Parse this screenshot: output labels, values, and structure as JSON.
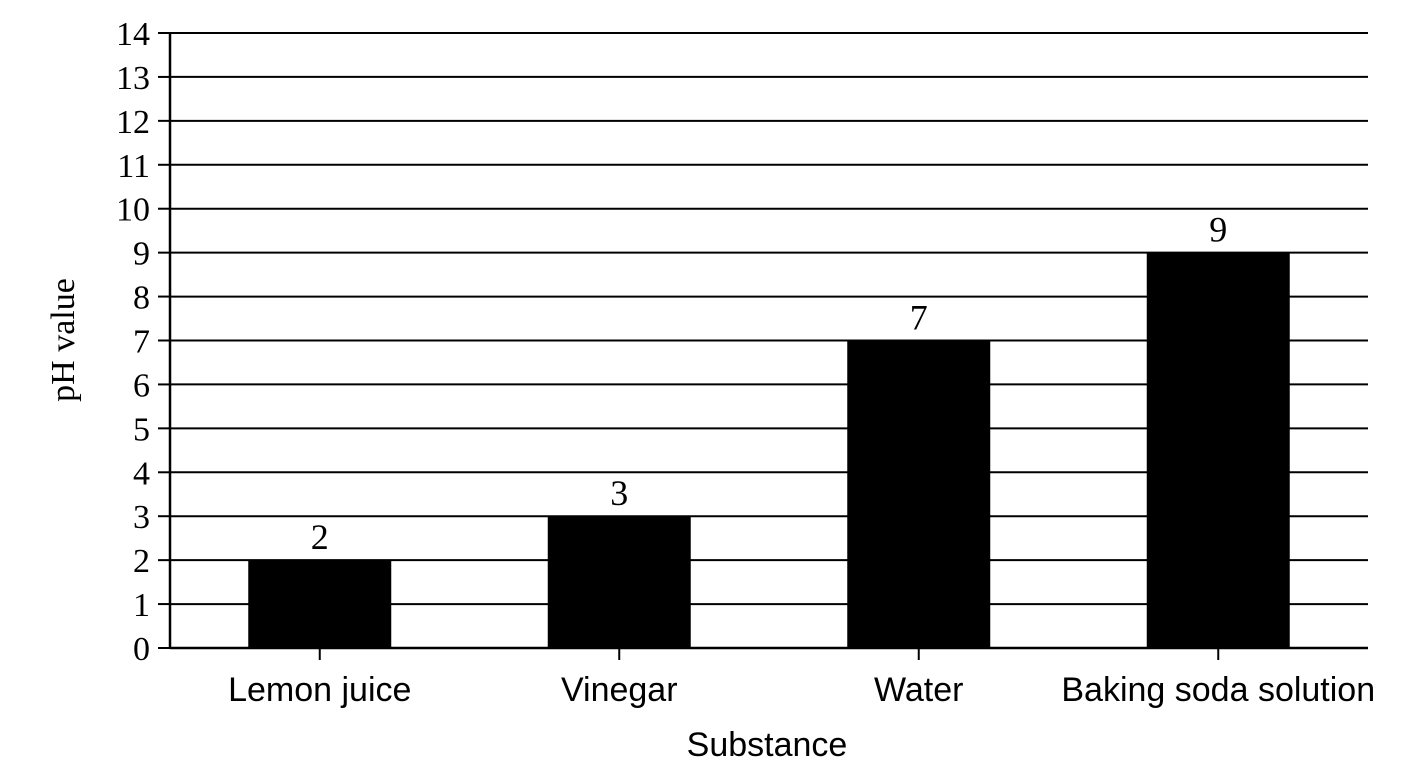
{
  "chart_data": {
    "type": "bar",
    "categories": [
      "Lemon juice",
      "Vinegar",
      "Water",
      "Baking soda solution"
    ],
    "values": [
      2,
      3,
      7,
      9
    ],
    "data_labels": [
      "2",
      "3",
      "7",
      "9"
    ],
    "title": "",
    "xlabel": "Substance",
    "ylabel": "pH value",
    "ylim": [
      0,
      14
    ],
    "yticks": [
      0,
      1,
      2,
      3,
      4,
      5,
      6,
      7,
      8,
      9,
      10,
      11,
      12,
      13,
      14
    ],
    "grid": true,
    "bar_color": "#000000",
    "grid_color": "#000000"
  }
}
